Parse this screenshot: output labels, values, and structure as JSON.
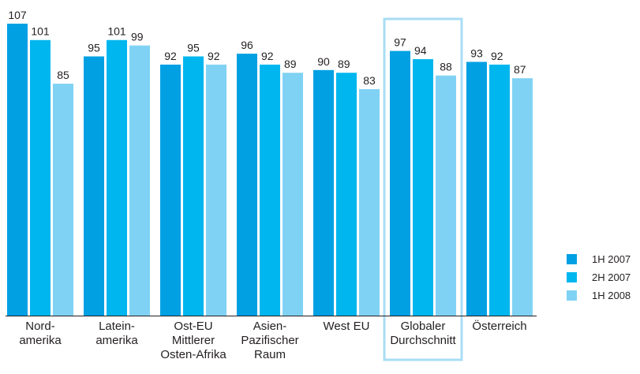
{
  "colors": {
    "series_1": "#00a0e3",
    "series_2": "#00b6ee",
    "series_3": "#80d2f4",
    "highlight_frame": "#a9ddf5",
    "axis": "#231f20",
    "text": "#231f20"
  },
  "chart_data": {
    "type": "bar",
    "title": "",
    "xlabel": "",
    "ylabel": "",
    "ylim": [
      0,
      107
    ],
    "grid": false,
    "legend_position": "bottom-right",
    "highlighted_category_index": 5,
    "categories": [
      [
        "Nord-",
        "amerika"
      ],
      [
        "Latein-",
        "amerika"
      ],
      [
        "Ost-EU",
        "Mittlerer",
        "Osten-Afrika"
      ],
      [
        "Asien-",
        "Pazifischer",
        "Raum"
      ],
      [
        "West EU"
      ],
      [
        "Globaler",
        "Durchschnitt"
      ],
      [
        "Österreich"
      ]
    ],
    "series": [
      {
        "name": "1H 2007",
        "values": [
          107,
          95,
          92,
          96,
          90,
          97,
          93
        ]
      },
      {
        "name": "2H 2007",
        "values": [
          101,
          101,
          95,
          92,
          89,
          94,
          92
        ]
      },
      {
        "name": "1H 2008",
        "values": [
          85,
          99,
          92,
          89,
          83,
          88,
          87
        ]
      }
    ]
  }
}
